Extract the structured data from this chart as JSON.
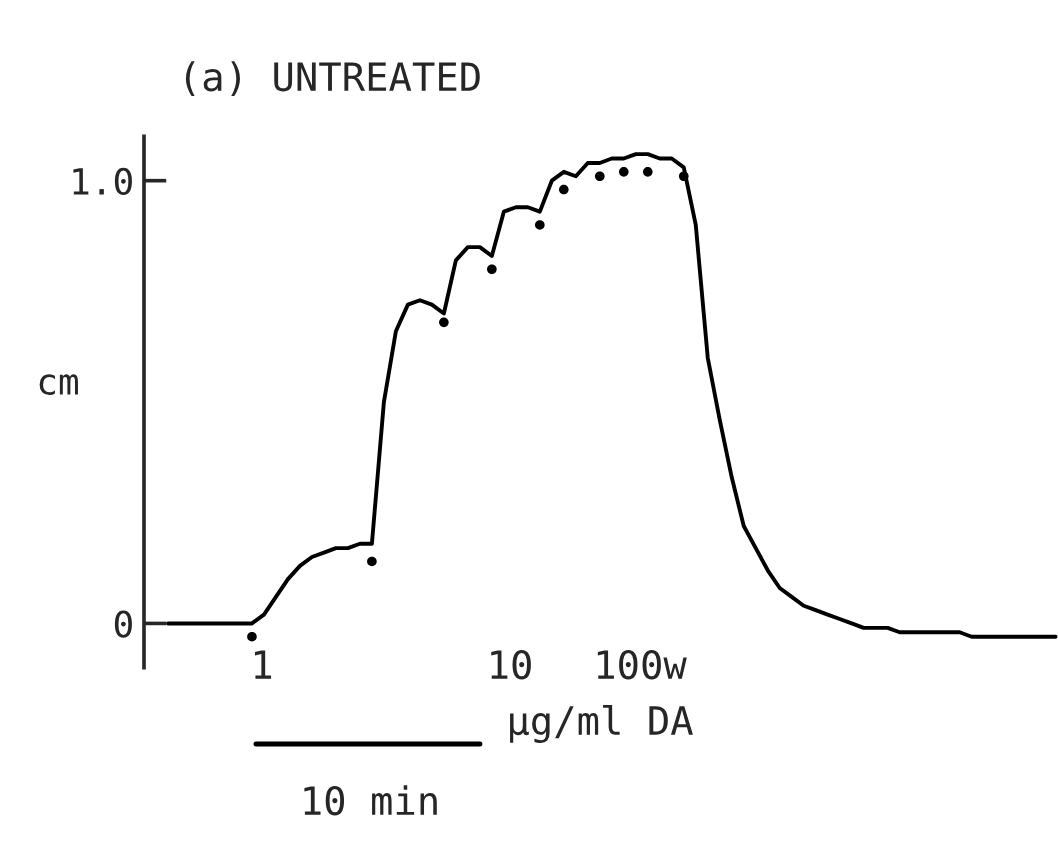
{
  "chart_data": {
    "type": "line",
    "title": "(a) UNTREATED",
    "ylabel": "cm",
    "categories": [
      null,
      null,
      null,
      null,
      null,
      null,
      null,
      null,
      null,
      null,
      null,
      null,
      null,
      null,
      null,
      null,
      null,
      null,
      null,
      null,
      null,
      null,
      null,
      null,
      null,
      null,
      null,
      null,
      null,
      null,
      null,
      null,
      null,
      null,
      null,
      null,
      null,
      null,
      null,
      null,
      null,
      null,
      null,
      null,
      null,
      null,
      null,
      null,
      null,
      null,
      null,
      null,
      null,
      null,
      null,
      null,
      null,
      null,
      null,
      null,
      null,
      null,
      null,
      null,
      null,
      null,
      null,
      null,
      null,
      null,
      null,
      null,
      null,
      null,
      null
    ],
    "series": [
      {
        "color": "#000000",
        "values": [
          0,
          0,
          0,
          0,
          0,
          0,
          0,
          0,
          0.02,
          0.06,
          0.1,
          0.13,
          0.15,
          0.16,
          0.17,
          0.17,
          0.18,
          0.18,
          0.5,
          0.66,
          0.72,
          0.73,
          0.72,
          0.7,
          0.82,
          0.85,
          0.85,
          0.83,
          0.93,
          0.94,
          0.94,
          0.93,
          1.0,
          1.02,
          1.01,
          1.04,
          1.04,
          1.05,
          1.05,
          1.06,
          1.06,
          1.05,
          1.05,
          1.03,
          0.9,
          0.6,
          0.46,
          0.33,
          0.22,
          0.17,
          0.12,
          0.08,
          0.06,
          0.04,
          0.03,
          0.02,
          0.01,
          0,
          -0.01,
          -0.01,
          -0.01,
          -0.02,
          -0.02,
          -0.02,
          -0.02,
          -0.02,
          -0.02,
          -0.03,
          -0.03,
          -0.03,
          -0.03,
          -0.03,
          -0.03,
          -0.03,
          -0.03
        ]
      },
      {
        "type": "scatter",
        "color": "#000000",
        "values": [
          null,
          null,
          null,
          null,
          null,
          null,
          null,
          -0.03,
          null,
          null,
          null,
          null,
          null,
          null,
          null,
          null,
          null,
          0.14,
          null,
          null,
          null,
          null,
          null,
          0.68,
          null,
          null,
          null,
          0.8,
          null,
          null,
          null,
          0.9,
          null,
          0.98,
          null,
          null,
          1.01,
          null,
          1.02,
          null,
          1.02,
          null,
          null,
          1.01,
          null,
          null,
          null,
          null,
          null,
          null,
          null,
          null,
          null,
          null,
          null,
          null,
          null,
          null,
          null,
          null,
          null,
          null,
          null,
          null,
          null,
          null,
          null,
          null,
          null,
          null,
          null,
          null,
          null,
          null,
          null
        ]
      }
    ],
    "ylim": [
      -0.1,
      1.1
    ],
    "yticks": [
      0,
      {
        "value": 1,
        "label": "1.0"
      }
    ],
    "tick_labels": "y",
    "grid": false,
    "legend": false,
    "annotations": [
      "1",
      "10",
      "100w",
      "µg/ml DA",
      "10 min"
    ]
  }
}
